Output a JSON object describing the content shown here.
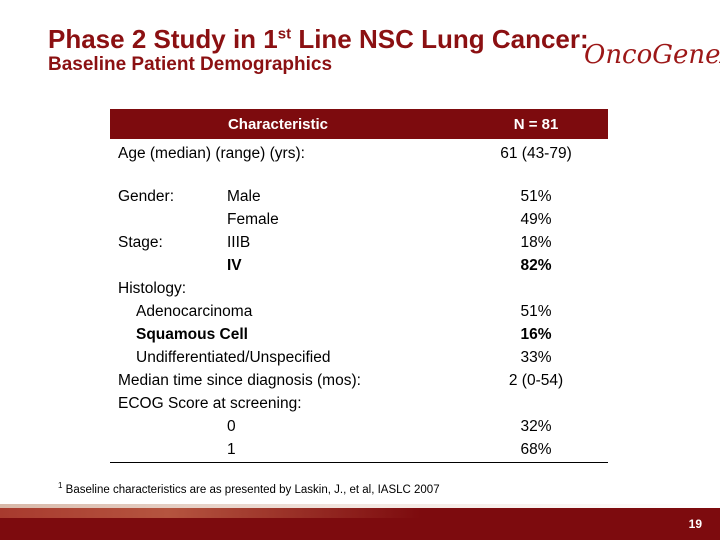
{
  "header": {
    "title_pre": "Phase 2 Study in 1",
    "title_sup": "st",
    "title_post": " Line NSC Lung Cancer:",
    "subtitle": "Baseline Patient Demographics",
    "logo_text": "OncoGeneX",
    "logo_tm": "TM"
  },
  "table": {
    "col_characteristic": "Characteristic",
    "col_n": "N = 81",
    "rows": [
      {
        "label": "Age (median) (range) (yrs):",
        "sub": "",
        "value": "61 (43-79)"
      },
      {
        "label": "",
        "sub": "",
        "value": ""
      },
      {
        "label": "Gender:",
        "sub": "Male",
        "value": "51%"
      },
      {
        "label": "",
        "sub": "Female",
        "value": "49%"
      },
      {
        "label": "Stage:",
        "sub": "IIIB",
        "value": "18%"
      },
      {
        "label": "",
        "sub": "IV",
        "value": "82%"
      },
      {
        "label": "Histology:",
        "sub": "",
        "value": ""
      },
      {
        "label": "Adenocarcinoma",
        "sub": "",
        "value": "51%"
      },
      {
        "label": "Squamous Cell",
        "sub": "",
        "value": "16%"
      },
      {
        "label": "Undifferentiated/Unspecified",
        "sub": "",
        "value": "33%"
      },
      {
        "label": "Median time since diagnosis (mos):",
        "sub": "",
        "value": "2 (0-54)"
      },
      {
        "label": "ECOG Score at screening:",
        "sub": "",
        "value": ""
      },
      {
        "label": "",
        "sub": "0",
        "value": "32%"
      },
      {
        "label": "",
        "sub": "1",
        "value": "68%"
      }
    ]
  },
  "footnote": {
    "sup": "1",
    "text": " Baseline characteristics are as presented by Laskin, J., et al, IASLC 2007"
  },
  "footer": {
    "page_number": "19"
  },
  "colors": {
    "brand": "#7d0b0e",
    "title": "#8b1012"
  }
}
